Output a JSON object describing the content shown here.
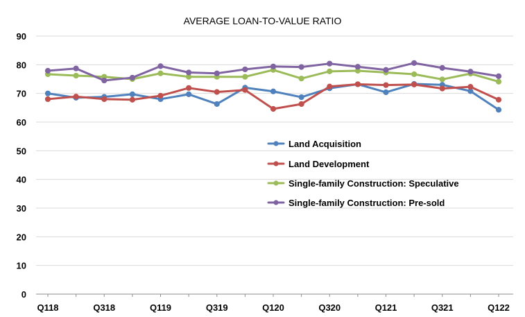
{
  "chart_data": {
    "type": "line",
    "title": "AVERAGE LOAN-TO-VALUE RATIO",
    "xlabel": "",
    "ylabel": "",
    "ylim": [
      0,
      90
    ],
    "yticks": [
      0,
      10,
      20,
      30,
      40,
      50,
      60,
      70,
      80,
      90
    ],
    "grid": true,
    "legend_position": "center-right",
    "categories": [
      "Q118",
      "Q218",
      "Q318",
      "Q418",
      "Q119",
      "Q219",
      "Q319",
      "Q419",
      "Q120",
      "Q220",
      "Q320",
      "Q420",
      "Q121",
      "Q221",
      "Q321",
      "Q421",
      "Q122"
    ],
    "visible_x_labels": [
      "Q118",
      "Q318",
      "Q119",
      "Q319",
      "Q120",
      "Q320",
      "Q121",
      "Q321",
      "Q122"
    ],
    "series": [
      {
        "name": "Land Acquisition",
        "color": "#4F81BD",
        "values": [
          70.0,
          68.5,
          68.8,
          69.7,
          68.0,
          69.7,
          66.3,
          72.0,
          70.7,
          68.7,
          71.8,
          73.2,
          70.4,
          73.3,
          73.0,
          70.8,
          64.3
        ]
      },
      {
        "name": "Land Development",
        "color": "#C0504D",
        "values": [
          68.0,
          68.9,
          68.0,
          67.8,
          69.2,
          71.9,
          70.5,
          71.2,
          64.6,
          66.3,
          72.4,
          73.2,
          72.9,
          73.1,
          71.7,
          72.3,
          67.8
        ]
      },
      {
        "name": "Single-family Construction: Speculative",
        "color": "#9BBB59",
        "values": [
          76.7,
          76.2,
          75.8,
          75.0,
          77.0,
          75.8,
          75.8,
          75.8,
          78.2,
          75.2,
          77.7,
          77.9,
          77.3,
          76.7,
          74.9,
          76.9,
          74.1
        ]
      },
      {
        "name": "Single-family Construction: Pre-sold",
        "color": "#8064A2",
        "values": [
          77.9,
          78.7,
          74.5,
          75.5,
          79.5,
          77.3,
          77.0,
          78.4,
          79.4,
          79.2,
          80.4,
          79.3,
          78.2,
          80.6,
          78.9,
          77.6,
          76.0
        ]
      }
    ]
  }
}
